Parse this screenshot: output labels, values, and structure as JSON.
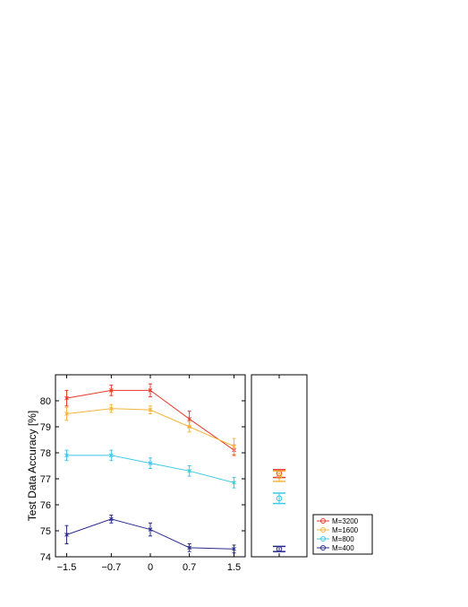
{
  "chart_data": [
    {
      "type": "line",
      "title": "",
      "xlabel": "",
      "ylabel": "Test Data Accuracy [%]",
      "x": [
        -1.5,
        -0.7,
        0,
        0.7,
        1.5
      ],
      "xticks": [
        "−1.5",
        "−0.7",
        "0",
        "0.7",
        "1.5"
      ],
      "xlim": [
        -1.7,
        1.7
      ],
      "ylim": [
        74,
        81
      ],
      "yticks": [
        "74",
        "75",
        "76",
        "77",
        "78",
        "79",
        "80"
      ],
      "grid": false,
      "series": [
        {
          "name": "M=3200",
          "color": "#e8392c",
          "values": [
            80.1,
            80.4,
            80.4,
            79.3,
            78.1
          ],
          "errors": [
            0.3,
            0.2,
            0.25,
            0.3,
            0.2
          ]
        },
        {
          "name": "M=1600",
          "color": "#f5b53c",
          "values": [
            79.5,
            79.7,
            79.65,
            79.0,
            78.25
          ],
          "errors": [
            0.25,
            0.15,
            0.15,
            0.2,
            0.3
          ]
        },
        {
          "name": "M=800",
          "color": "#3cc8e8",
          "values": [
            77.9,
            77.9,
            77.6,
            77.3,
            76.85
          ],
          "errors": [
            0.2,
            0.2,
            0.2,
            0.2,
            0.2
          ]
        },
        {
          "name": "M=400",
          "color": "#2a2a8c",
          "values": [
            74.85,
            75.45,
            75.05,
            74.35,
            74.3
          ],
          "errors": [
            0.35,
            0.15,
            0.25,
            0.15,
            0.15
          ]
        }
      ]
    },
    {
      "type": "scatter",
      "title": "",
      "ylim": [
        74,
        81
      ],
      "series": [
        {
          "name": "M=3200",
          "color": "#e8392c",
          "value": 77.2,
          "error": 0.15
        },
        {
          "name": "M=1600",
          "color": "#f5b53c",
          "value": 77.1,
          "error": 0.2
        },
        {
          "name": "M=800",
          "color": "#3cc8e8",
          "value": 76.25,
          "error": 0.2
        },
        {
          "name": "M=400",
          "color": "#2a2a8c",
          "value": 74.3,
          "error": 0.1
        }
      ]
    }
  ],
  "legend": {
    "placement": "bottom-right",
    "items": [
      {
        "label": "M=3200",
        "color": "#e8392c"
      },
      {
        "label": "M=1600",
        "color": "#f5b53c"
      },
      {
        "label": "M=800",
        "color": "#3cc8e8"
      },
      {
        "label": "M=400",
        "color": "#2a2a8c"
      }
    ]
  }
}
